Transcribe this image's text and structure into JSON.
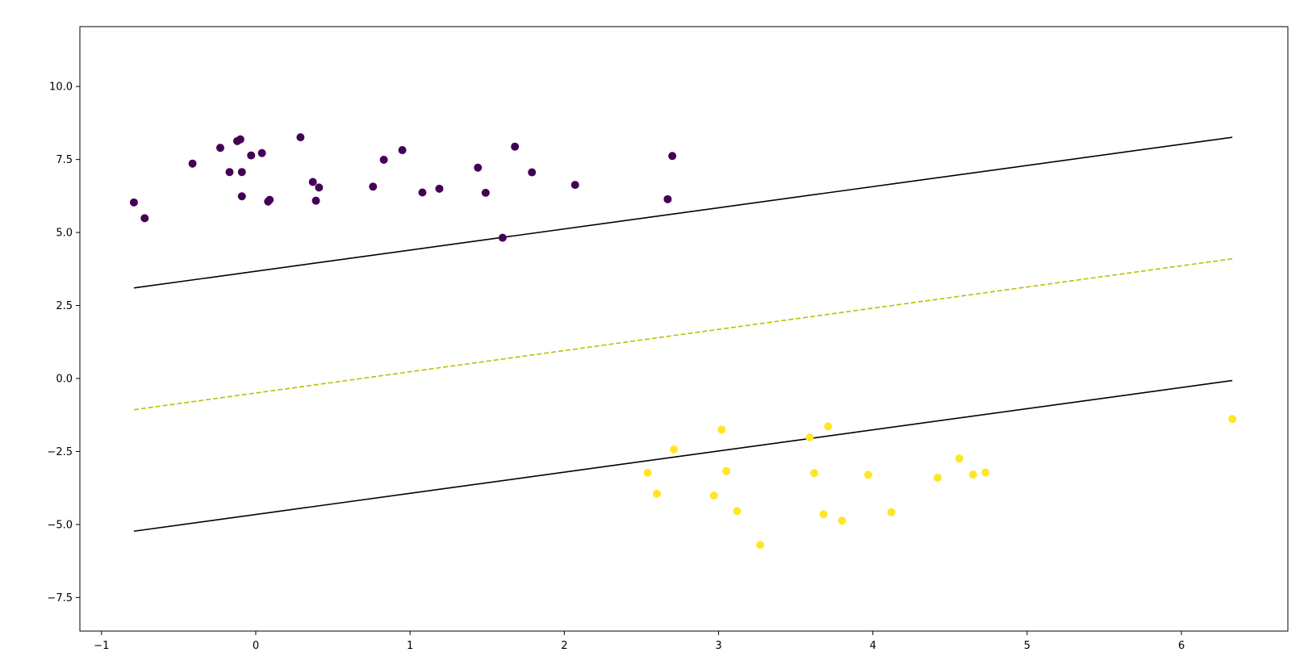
{
  "chart_data": {
    "type": "scatter",
    "title": "",
    "xlabel": "",
    "ylabel": "",
    "xlim": [
      -1.14,
      6.69
    ],
    "ylim": [
      -8.65,
      12.05
    ],
    "x_ticks": [
      -1,
      0,
      1,
      2,
      3,
      4,
      5,
      6
    ],
    "x_tick_labels": [
      "−1",
      "0",
      "1",
      "2",
      "3",
      "4",
      "5",
      "6"
    ],
    "y_ticks": [
      -7.5,
      -5.0,
      -2.5,
      0.0,
      2.5,
      5.0,
      7.5,
      10.0
    ],
    "y_tick_labels": [
      "−7.5",
      "−5.0",
      "−2.5",
      "0.0",
      "2.5",
      "5.0",
      "7.5",
      "10.0"
    ],
    "grid": false,
    "series": [
      {
        "color": "#440154",
        "points": [
          [
            -0.79,
            6.03
          ],
          [
            -0.72,
            5.49
          ],
          [
            -0.41,
            7.36
          ],
          [
            -0.23,
            7.9
          ],
          [
            -0.17,
            7.07
          ],
          [
            -0.12,
            8.13
          ],
          [
            -0.1,
            8.19
          ],
          [
            -0.09,
            7.07
          ],
          [
            -0.09,
            6.24
          ],
          [
            -0.03,
            7.64
          ],
          [
            0.04,
            7.72
          ],
          [
            0.08,
            6.06
          ],
          [
            0.09,
            6.12
          ],
          [
            0.29,
            8.26
          ],
          [
            0.37,
            6.73
          ],
          [
            0.39,
            6.09
          ],
          [
            0.41,
            6.54
          ],
          [
            0.76,
            6.57
          ],
          [
            0.83,
            7.49
          ],
          [
            0.95,
            7.82
          ],
          [
            1.08,
            6.37
          ],
          [
            1.19,
            6.5
          ],
          [
            1.44,
            7.22
          ],
          [
            1.49,
            6.36
          ],
          [
            1.6,
            4.82
          ],
          [
            1.68,
            7.94
          ],
          [
            1.79,
            7.06
          ],
          [
            2.07,
            6.63
          ],
          [
            2.67,
            6.14
          ],
          [
            2.7,
            7.62
          ]
        ]
      },
      {
        "color": "#fde725",
        "points": [
          [
            2.54,
            -3.23
          ],
          [
            2.6,
            -3.95
          ],
          [
            2.71,
            -2.43
          ],
          [
            2.97,
            -4.01
          ],
          [
            3.02,
            -1.75
          ],
          [
            3.05,
            -3.17
          ],
          [
            3.12,
            -4.54
          ],
          [
            3.27,
            -5.7
          ],
          [
            3.59,
            -2.02
          ],
          [
            3.62,
            -3.24
          ],
          [
            3.68,
            -4.65
          ],
          [
            3.71,
            -1.64
          ],
          [
            3.8,
            -4.87
          ],
          [
            3.97,
            -3.3
          ],
          [
            4.12,
            -4.58
          ],
          [
            4.42,
            -3.4
          ],
          [
            4.56,
            -2.74
          ],
          [
            4.65,
            -3.29
          ],
          [
            4.73,
            -3.22
          ],
          [
            6.33,
            -1.39
          ]
        ]
      }
    ],
    "lines": [
      {
        "x": [
          -0.79,
          6.33
        ],
        "y": [
          3.1,
          8.26
        ],
        "color": "#000000",
        "style": "solid"
      },
      {
        "x": [
          -0.79,
          6.33
        ],
        "y": [
          -1.07,
          4.1
        ],
        "color": "#bfbf00",
        "style": "dashed"
      },
      {
        "x": [
          -0.79,
          6.33
        ],
        "y": [
          -5.23,
          -0.07
        ],
        "color": "#000000",
        "style": "solid"
      }
    ]
  }
}
